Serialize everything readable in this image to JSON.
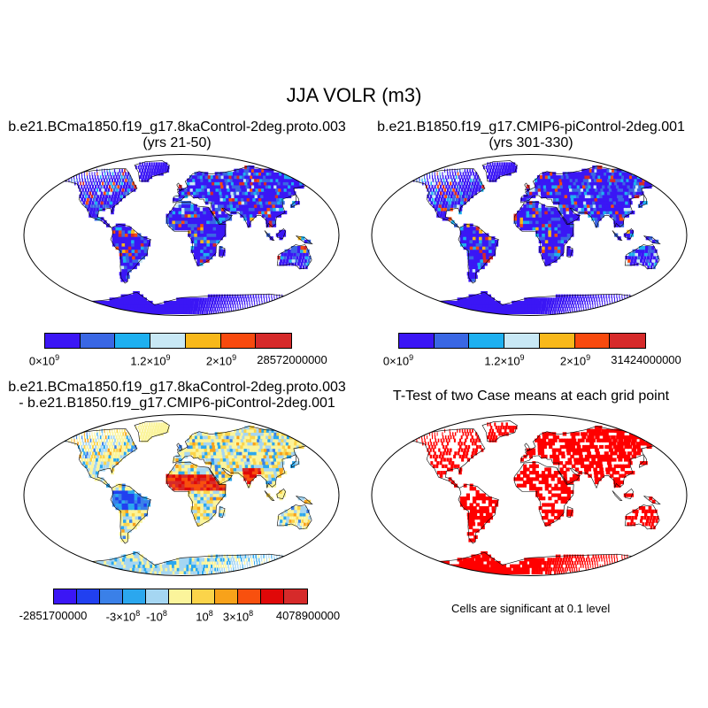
{
  "title": "JJA VOLR (m3)",
  "panels": [
    {
      "line1": "b.e21.BCma1850.f19_g17.8kaControl-2deg.proto.003",
      "line2": "(yrs 21-50)"
    },
    {
      "line1": "b.e21.B1850.f19_g17.CMIP6-piControl-2deg.001",
      "line2": "(yrs 301-330)"
    },
    {
      "line1": "b.e21.BCma1850.f19_g17.8kaControl-2deg.proto.003",
      "line2": "- b.e21.B1850.f19_g17.CMIP6-piControl-2deg.001"
    },
    {
      "line1": "T-Test of two Case means at each grid point",
      "line2": ""
    }
  ],
  "colorbars": {
    "top": {
      "colors": [
        "#3b16f5",
        "#3a67e4",
        "#1eb0f0",
        "#c8e8f5",
        "#f8b81a",
        "#f84a0e",
        "#d62a2a"
      ],
      "labels_left": [
        "0×10",
        "1.2×10",
        "2×10",
        "28572000000"
      ],
      "labels_right": [
        "0×10",
        "1.2×10",
        "2×10",
        "31424000000"
      ],
      "exponent": "9"
    },
    "diff": {
      "colors": [
        "#3b16f5",
        "#2140f0",
        "#3a80e8",
        "#2ba7ee",
        "#a5d6f2",
        "#fbf49b",
        "#fbd44a",
        "#f8a21a",
        "#f8500e",
        "#e00808",
        "#d62a2a"
      ],
      "labels": [
        "-2851700000",
        "-3×10",
        "-10",
        "10",
        "3×10",
        "4078900000"
      ],
      "exponent": "8"
    }
  },
  "ttest_note": "Cells are significant at 0.1 level"
}
